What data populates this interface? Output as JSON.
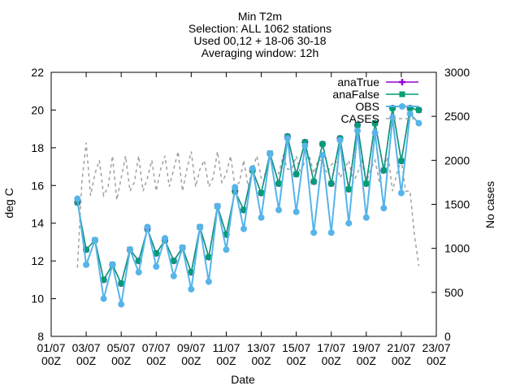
{
  "title_lines": [
    "Min T2m",
    "Selection: ALL    1062 stations",
    "Used 00,12 + 18-06 30-18",
    "Averaging window: 12h"
  ],
  "chart_data": {
    "type": "line",
    "xlabel": "Date",
    "ylabel": "deg C",
    "y2label": "No cases",
    "x_range": [
      "2022-07-01T00:00Z",
      "2022-07-23T00:00Z"
    ],
    "x_ticks": [
      {
        "date": "2022-07-01T00:00Z",
        "label": [
          "01/07",
          "00Z"
        ]
      },
      {
        "date": "2022-07-03T00:00Z",
        "label": [
          "03/07",
          "00Z"
        ]
      },
      {
        "date": "2022-07-05T00:00Z",
        "label": [
          "05/07",
          "00Z"
        ]
      },
      {
        "date": "2022-07-07T00:00Z",
        "label": [
          "07/07",
          "00Z"
        ]
      },
      {
        "date": "2022-07-09T00:00Z",
        "label": [
          "09/07",
          "00Z"
        ]
      },
      {
        "date": "2022-07-11T00:00Z",
        "label": [
          "11/07",
          "00Z"
        ]
      },
      {
        "date": "2022-07-13T00:00Z",
        "label": [
          "13/07",
          "00Z"
        ]
      },
      {
        "date": "2022-07-15T00:00Z",
        "label": [
          "15/07",
          "00Z"
        ]
      },
      {
        "date": "2022-07-17T00:00Z",
        "label": [
          "17/07",
          "00Z"
        ]
      },
      {
        "date": "2022-07-19T00:00Z",
        "label": [
          "19/07",
          "00Z"
        ]
      },
      {
        "date": "2022-07-21T00:00Z",
        "label": [
          "21/07",
          "00Z"
        ]
      },
      {
        "date": "2022-07-23T00:00Z",
        "label": [
          "23/07",
          "00Z"
        ]
      }
    ],
    "ylim": [
      8,
      22
    ],
    "y_ticks": [
      8,
      10,
      12,
      14,
      16,
      18,
      20,
      22
    ],
    "y2lim": [
      0,
      3000
    ],
    "y2_ticks": [
      0,
      500,
      1000,
      1500,
      2000,
      2500,
      3000
    ],
    "legend_position": "top-right",
    "colors": {
      "anaTrue": "#9400d3",
      "anaFalse": "#009e73",
      "OBS": "#56b4e9",
      "CASES": "#a0a0a0"
    },
    "x": [
      "2022-07-02T12:00Z",
      "2022-07-03T00:00Z",
      "2022-07-03T12:00Z",
      "2022-07-04T00:00Z",
      "2022-07-04T12:00Z",
      "2022-07-05T00:00Z",
      "2022-07-05T12:00Z",
      "2022-07-06T00:00Z",
      "2022-07-06T12:00Z",
      "2022-07-07T00:00Z",
      "2022-07-07T12:00Z",
      "2022-07-08T00:00Z",
      "2022-07-08T12:00Z",
      "2022-07-09T00:00Z",
      "2022-07-09T12:00Z",
      "2022-07-10T00:00Z",
      "2022-07-10T12:00Z",
      "2022-07-11T00:00Z",
      "2022-07-11T12:00Z",
      "2022-07-12T00:00Z",
      "2022-07-12T12:00Z",
      "2022-07-13T00:00Z",
      "2022-07-13T12:00Z",
      "2022-07-14T00:00Z",
      "2022-07-14T12:00Z",
      "2022-07-15T00:00Z",
      "2022-07-15T12:00Z",
      "2022-07-16T00:00Z",
      "2022-07-16T12:00Z",
      "2022-07-17T00:00Z",
      "2022-07-17T12:00Z",
      "2022-07-18T00:00Z",
      "2022-07-18T12:00Z",
      "2022-07-19T00:00Z",
      "2022-07-19T12:00Z",
      "2022-07-20T00:00Z",
      "2022-07-20T12:00Z",
      "2022-07-21T00:00Z",
      "2022-07-21T12:00Z",
      "2022-07-22T00:00Z"
    ],
    "series": [
      {
        "name": "anaTrue",
        "axis": "y1",
        "values": [
          15.1,
          12.6,
          13.1,
          11.0,
          11.8,
          10.8,
          12.6,
          12.0,
          13.7,
          12.4,
          13.1,
          12.0,
          12.7,
          11.4,
          13.8,
          12.2,
          14.9,
          13.4,
          15.7,
          14.7,
          16.8,
          15.6,
          17.7,
          16.1,
          18.6,
          16.6,
          18.3,
          16.2,
          18.2,
          16.1,
          18.5,
          15.8,
          19.2,
          16.1,
          19.3,
          16.8,
          20.1,
          17.3,
          20.1,
          20.0
        ]
      },
      {
        "name": "anaFalse",
        "axis": "y1",
        "values": [
          15.1,
          12.6,
          13.1,
          11.0,
          11.8,
          10.8,
          12.6,
          12.0,
          13.7,
          12.4,
          13.1,
          12.0,
          12.7,
          11.4,
          13.8,
          12.2,
          14.9,
          13.4,
          15.7,
          14.7,
          16.8,
          15.6,
          17.7,
          16.1,
          18.6,
          16.6,
          18.3,
          16.2,
          18.2,
          16.1,
          18.5,
          15.8,
          19.2,
          16.1,
          19.3,
          16.8,
          20.1,
          17.3,
          20.1,
          20.0
        ]
      },
      {
        "name": "OBS",
        "axis": "y1",
        "values": [
          15.3,
          11.8,
          13.1,
          10.0,
          11.8,
          9.7,
          12.6,
          11.4,
          13.8,
          11.7,
          13.2,
          11.2,
          12.7,
          10.5,
          13.8,
          10.9,
          14.9,
          12.6,
          15.9,
          13.7,
          16.9,
          14.3,
          17.7,
          14.7,
          18.5,
          14.6,
          18.1,
          13.5,
          17.6,
          13.5,
          18.4,
          14.0,
          18.9,
          14.3,
          18.8,
          14.8,
          19.6,
          15.6,
          19.8,
          19.3
        ]
      },
      {
        "name": "CASES",
        "axis": "y2",
        "dashed": true,
        "x": [
          "2022-07-02T12:00Z",
          "2022-07-02T18:00Z",
          "2022-07-03T00:00Z",
          "2022-07-03T06:00Z",
          "2022-07-03T12:00Z",
          "2022-07-03T18:00Z",
          "2022-07-04T00:00Z",
          "2022-07-04T06:00Z",
          "2022-07-04T12:00Z",
          "2022-07-04T18:00Z",
          "2022-07-05T00:00Z",
          "2022-07-05T06:00Z",
          "2022-07-05T12:00Z",
          "2022-07-05T18:00Z",
          "2022-07-06T00:00Z",
          "2022-07-06T06:00Z",
          "2022-07-06T12:00Z",
          "2022-07-06T18:00Z",
          "2022-07-07T00:00Z",
          "2022-07-07T06:00Z",
          "2022-07-07T12:00Z",
          "2022-07-07T18:00Z",
          "2022-07-08T00:00Z",
          "2022-07-08T06:00Z",
          "2022-07-08T12:00Z",
          "2022-07-08T18:00Z",
          "2022-07-09T00:00Z",
          "2022-07-09T06:00Z",
          "2022-07-09T12:00Z",
          "2022-07-09T18:00Z",
          "2022-07-10T00:00Z",
          "2022-07-10T06:00Z",
          "2022-07-10T12:00Z",
          "2022-07-10T18:00Z",
          "2022-07-11T00:00Z",
          "2022-07-11T06:00Z",
          "2022-07-11T12:00Z",
          "2022-07-11T18:00Z",
          "2022-07-12T00:00Z",
          "2022-07-12T06:00Z",
          "2022-07-12T12:00Z",
          "2022-07-12T18:00Z",
          "2022-07-13T00:00Z",
          "2022-07-13T06:00Z",
          "2022-07-13T12:00Z",
          "2022-07-13T18:00Z",
          "2022-07-14T00:00Z",
          "2022-07-14T06:00Z",
          "2022-07-14T12:00Z",
          "2022-07-14T18:00Z",
          "2022-07-15T00:00Z",
          "2022-07-15T06:00Z",
          "2022-07-15T12:00Z",
          "2022-07-15T18:00Z",
          "2022-07-16T00:00Z",
          "2022-07-16T06:00Z",
          "2022-07-16T12:00Z",
          "2022-07-16T18:00Z",
          "2022-07-17T00:00Z",
          "2022-07-17T06:00Z",
          "2022-07-17T12:00Z",
          "2022-07-17T18:00Z",
          "2022-07-18T00:00Z",
          "2022-07-18T06:00Z",
          "2022-07-18T12:00Z",
          "2022-07-18T18:00Z",
          "2022-07-19T00:00Z",
          "2022-07-19T06:00Z",
          "2022-07-19T12:00Z",
          "2022-07-19T18:00Z",
          "2022-07-20T00:00Z",
          "2022-07-20T06:00Z",
          "2022-07-20T12:00Z",
          "2022-07-20T18:00Z",
          "2022-07-21T00:00Z",
          "2022-07-21T06:00Z",
          "2022-07-21T12:00Z",
          "2022-07-21T18:00Z",
          "2022-07-22T00:00Z"
        ],
        "values": [
          780,
          1750,
          2200,
          1600,
          1850,
          2000,
          1600,
          1700,
          2050,
          1550,
          1800,
          2050,
          1650,
          1750,
          2050,
          1650,
          1800,
          2000,
          1650,
          1900,
          2050,
          1700,
          1900,
          2100,
          1650,
          1900,
          2100,
          1700,
          1900,
          2000,
          1700,
          1800,
          2100,
          1750,
          1850,
          2050,
          1700,
          1750,
          2000,
          1700,
          1900,
          2050,
          1800,
          1850,
          2050,
          1900,
          1850,
          2050,
          1900,
          1900,
          2050,
          1850,
          2000,
          2050,
          1850,
          2000,
          2000,
          1850,
          1950,
          2000,
          1800,
          1900,
          2000,
          1750,
          1850,
          2000,
          1750,
          1900,
          2000,
          1750,
          1900,
          2050,
          1650,
          1850,
          2000,
          1650,
          1650,
          1150,
          800
        ]
      }
    ]
  }
}
